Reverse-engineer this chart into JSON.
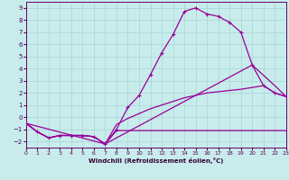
{
  "bg_color": "#c8ecec",
  "grid_color": "#a8d4d4",
  "line_color": "#990099",
  "xlabel": "Windchill (Refroidissement éolien,°C)",
  "xlim": [
    0,
    23
  ],
  "ylim": [
    -2.5,
    9.5
  ],
  "yticks": [
    -2,
    -1,
    0,
    1,
    2,
    3,
    4,
    5,
    6,
    7,
    8,
    9
  ],
  "xticks": [
    0,
    1,
    2,
    3,
    4,
    5,
    6,
    7,
    8,
    9,
    10,
    11,
    12,
    13,
    14,
    15,
    16,
    17,
    18,
    19,
    20,
    21,
    22,
    23
  ],
  "curve1_x": [
    0,
    1,
    2,
    3,
    4,
    5,
    6,
    7,
    8,
    9,
    10,
    11,
    12,
    13,
    14,
    15,
    16,
    17,
    18,
    19,
    20,
    21,
    22,
    23
  ],
  "curve1_y": [
    -0.5,
    -1.2,
    -1.7,
    -1.5,
    -1.5,
    -1.5,
    -1.6,
    -2.2,
    -1.0,
    0.8,
    1.8,
    3.5,
    5.3,
    6.8,
    8.7,
    9.0,
    8.5,
    8.3,
    7.8,
    7.0,
    4.3,
    2.6,
    2.0,
    1.7
  ],
  "curve2_x": [
    0,
    1,
    2,
    3,
    4,
    5,
    6,
    7,
    8,
    9,
    10,
    11,
    12,
    13,
    14,
    15,
    16,
    17,
    18,
    19,
    20,
    21,
    22,
    23
  ],
  "curve2_y": [
    -0.5,
    -1.2,
    -1.7,
    -1.5,
    -1.5,
    -1.5,
    -1.6,
    -2.2,
    -1.1,
    -1.1,
    -1.1,
    -1.1,
    -1.1,
    -1.1,
    -1.1,
    -1.1,
    -1.1,
    -1.1,
    -1.1,
    -1.1,
    -1.1,
    -1.1,
    -1.1,
    -1.1
  ],
  "curve3_x": [
    0,
    7,
    20,
    22,
    23
  ],
  "curve3_y": [
    -0.5,
    -2.2,
    4.3,
    2.6,
    1.7
  ],
  "curve4_x": [
    0,
    1,
    2,
    3,
    4,
    5,
    6,
    7,
    8,
    9,
    10,
    11,
    12,
    13,
    14,
    15,
    16,
    17,
    18,
    19,
    20,
    21,
    22,
    23
  ],
  "curve4_y": [
    -0.5,
    -1.2,
    -1.7,
    -1.5,
    -1.5,
    -1.5,
    -1.6,
    -2.2,
    -0.6,
    -0.1,
    0.3,
    0.7,
    1.0,
    1.3,
    1.6,
    1.8,
    2.0,
    2.1,
    2.2,
    2.3,
    2.45,
    2.6,
    2.0,
    1.7
  ]
}
